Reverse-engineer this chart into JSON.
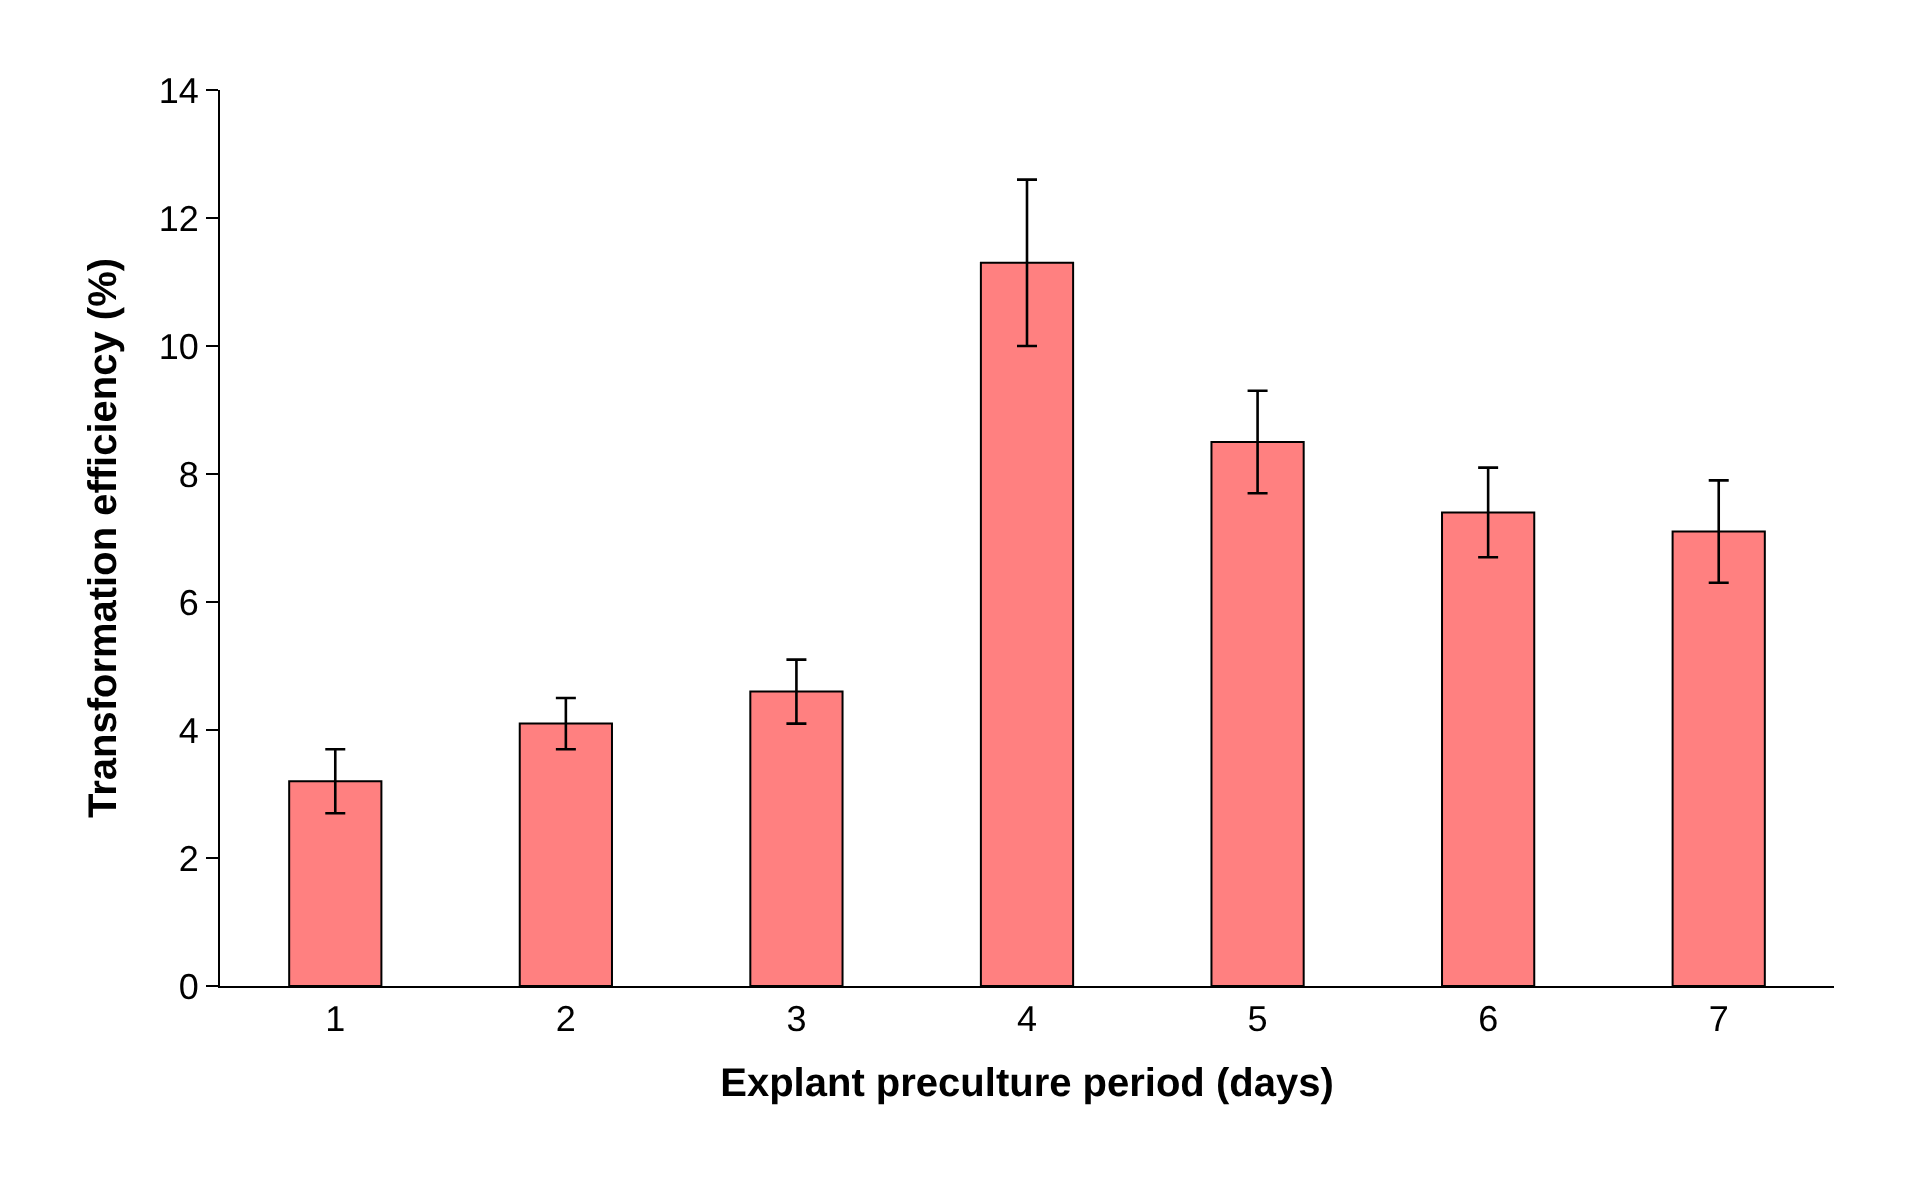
{
  "chart_data": {
    "type": "bar",
    "xlabel": "Explant preculture period (days)",
    "ylabel": "Transformation efficiency (%)",
    "categories": [
      "1",
      "2",
      "3",
      "4",
      "5",
      "6",
      "7"
    ],
    "values": [
      3.2,
      4.1,
      4.6,
      11.3,
      8.5,
      7.4,
      7.1
    ],
    "errors": [
      0.5,
      0.4,
      0.5,
      1.3,
      0.8,
      0.7,
      0.8
    ],
    "color": "#ff8080",
    "ylim": [
      0,
      14
    ],
    "yticks": [
      0,
      2,
      4,
      6,
      8,
      10,
      12,
      14
    ],
    "grid": false
  }
}
